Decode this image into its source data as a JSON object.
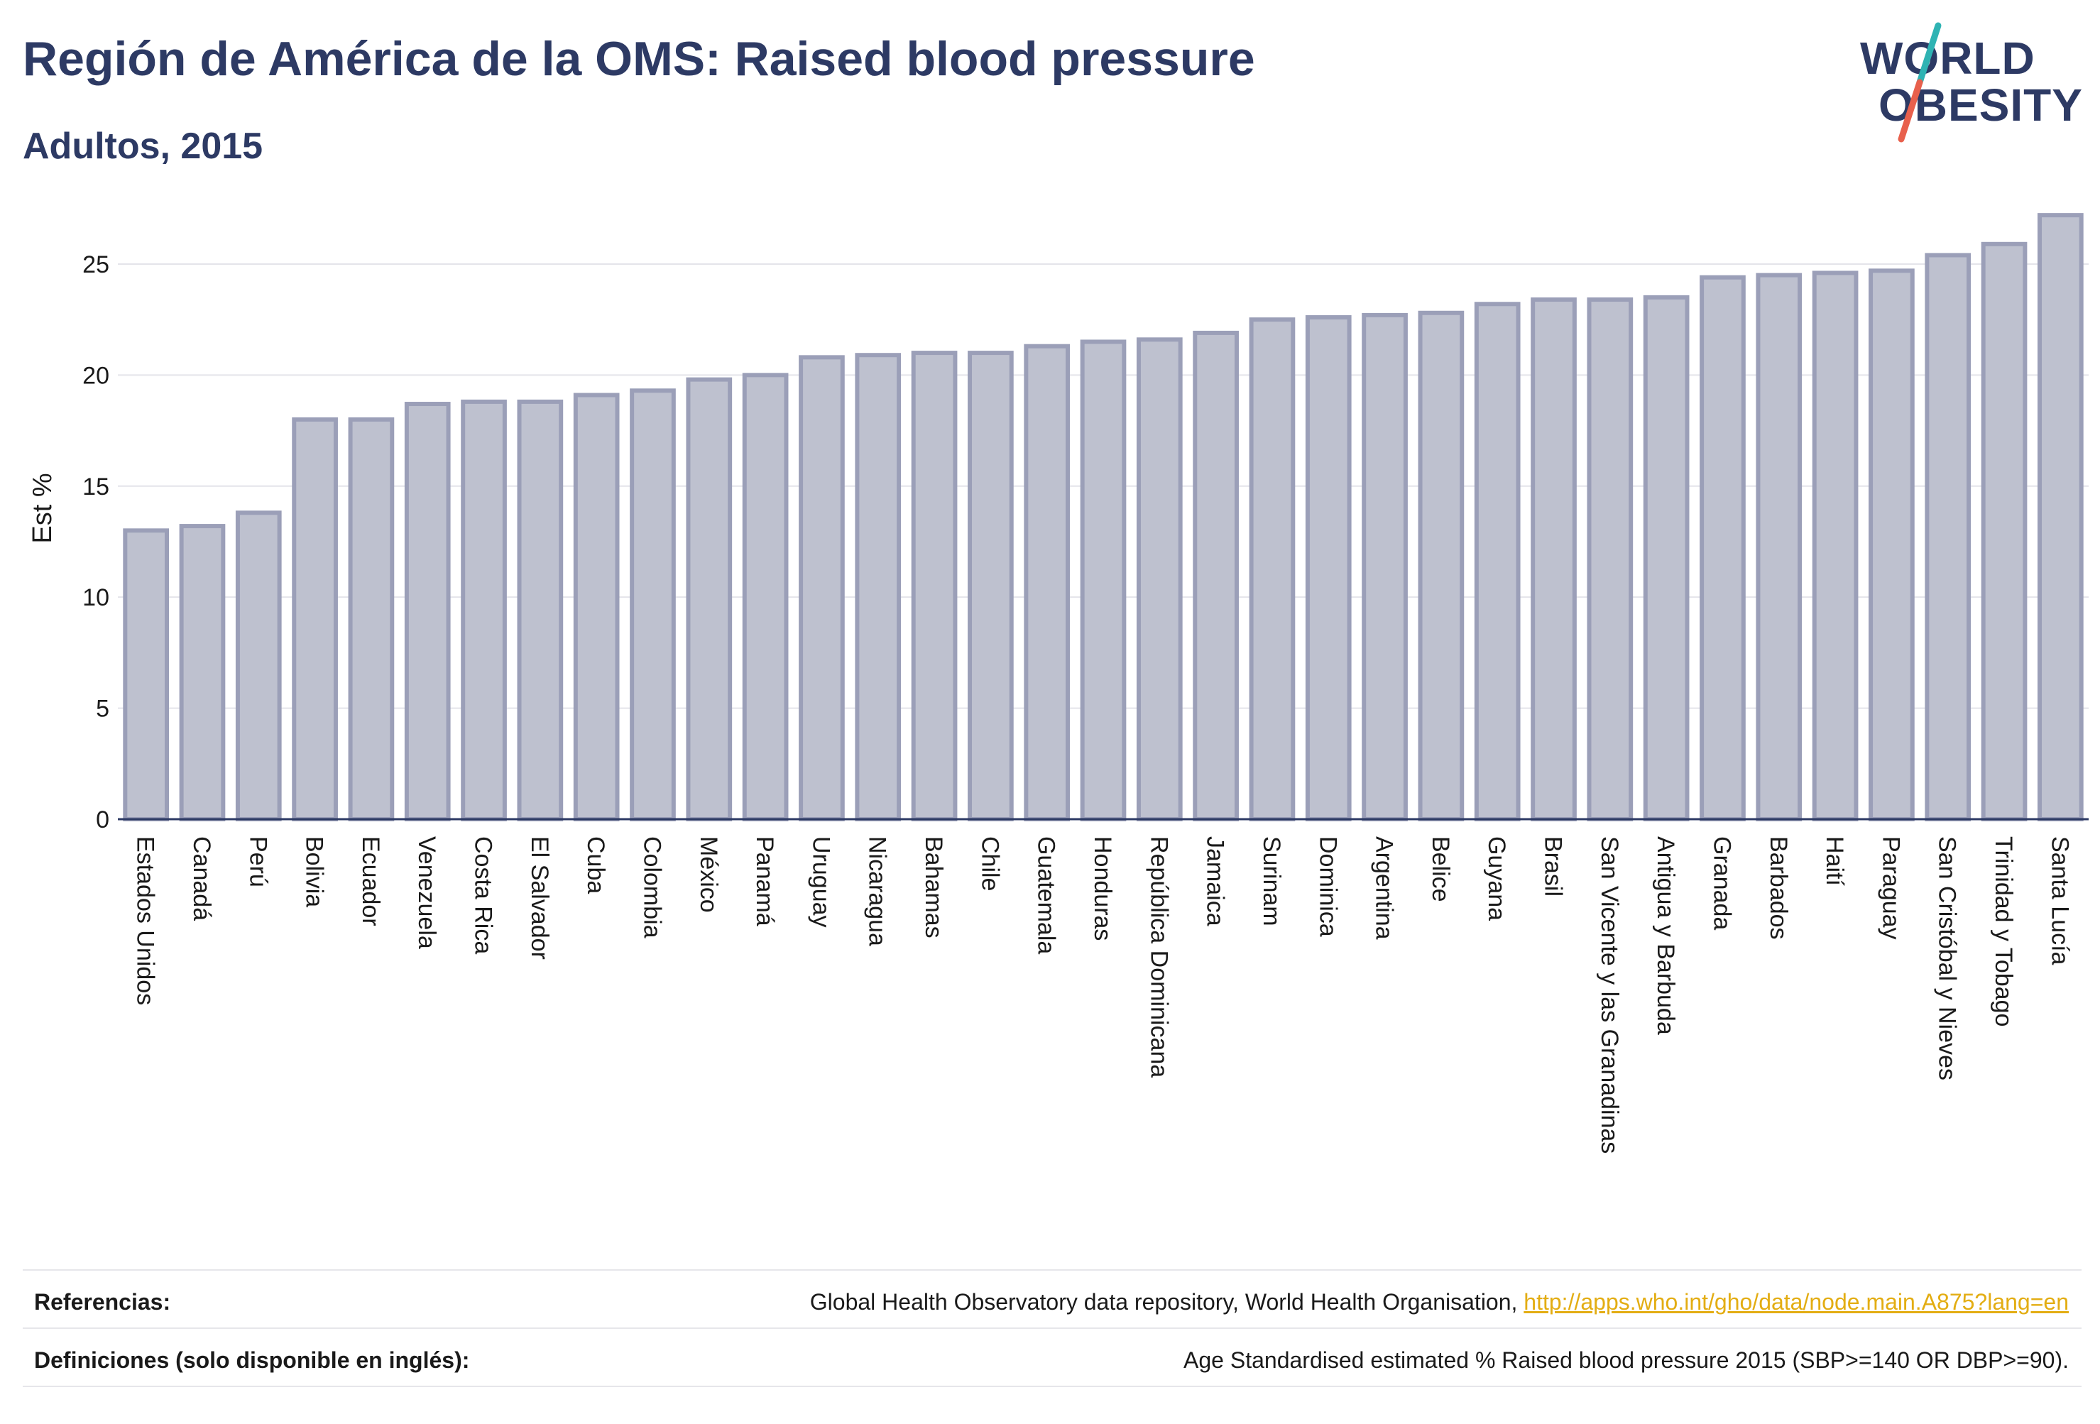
{
  "header": {
    "title": "Región de América de la OMS: Raised blood pressure",
    "subtitle": "Adultos, 2015"
  },
  "logo": {
    "line1": "WORLD",
    "line2": "OBESITY",
    "colors": {
      "text": "#2d3a64",
      "slash_teal": "#2fb3b3",
      "slash_red": "#e8604c"
    }
  },
  "chart_data": {
    "type": "bar",
    "title": "",
    "xlabel": "",
    "ylabel": "Est %",
    "ylim": [
      0,
      27.3
    ],
    "yticks": [
      0,
      5,
      10,
      15,
      20,
      25
    ],
    "grid": true,
    "legend": "none",
    "colors": {
      "bar_fill": "#bec1cf",
      "bar_stroke": "#9b9fb8",
      "axis": "#2d3a64",
      "grid": "#e4e4ea"
    },
    "categories": [
      "Estados Unidos",
      "Canadá",
      "Perú",
      "Bolivia",
      "Ecuador",
      "Venezuela",
      "Costa Rica",
      "El Salvador",
      "Cuba",
      "Colombia",
      "México",
      "Panamá",
      "Uruguay",
      "Nicaragua",
      "Bahamas",
      "Chile",
      "Guatemala",
      "Honduras",
      "República Dominicana",
      "Jamaica",
      "Surinam",
      "Dominica",
      "Argentina",
      "Belice",
      "Guyana",
      "Brasil",
      "San Vicente y las Granadinas",
      "Antigua y Barbuda",
      "Granada",
      "Barbados",
      "Haití",
      "Paraguay",
      "San Cristóbal y Nieves",
      "Trinidad y Tobago",
      "Santa Lucía"
    ],
    "values": [
      13.0,
      13.2,
      13.8,
      18.0,
      18.0,
      18.7,
      18.8,
      18.8,
      19.1,
      19.3,
      19.8,
      20.0,
      20.8,
      20.9,
      21.0,
      21.0,
      21.3,
      21.5,
      21.6,
      21.9,
      22.5,
      22.6,
      22.7,
      22.8,
      23.2,
      23.4,
      23.4,
      23.5,
      24.4,
      24.5,
      24.6,
      24.7,
      25.4,
      25.9,
      27.2
    ]
  },
  "footer": {
    "references_label": "Referencias:",
    "references_text": "Global Health Observatory data repository, World Health Organisation,",
    "references_link": "http://apps.who.int/gho/data/node.main.A875?lang=en",
    "definitions_label": "Definiciones (solo disponible en inglés):",
    "definitions_text": "Age Standardised estimated % Raised blood pressure 2015 (SBP>=140 OR DBP>=90)."
  }
}
